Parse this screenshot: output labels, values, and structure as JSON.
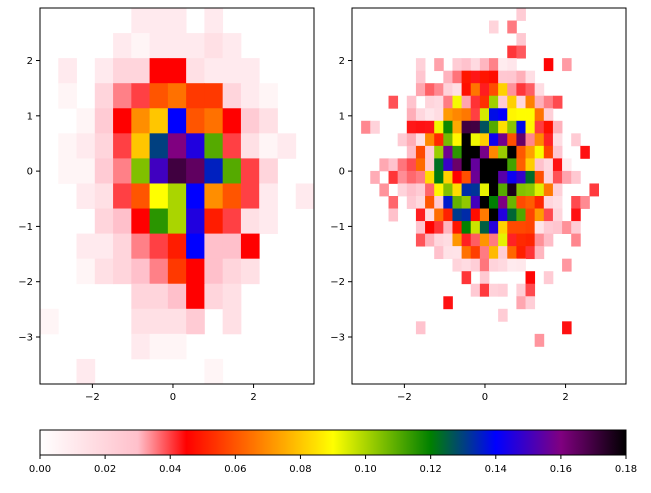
{
  "chart_data": [
    {
      "type": "heatmap",
      "title": "",
      "xlabel": "",
      "ylabel": "",
      "xlim": [
        -3.3,
        3.5
      ],
      "ylim": [
        -3.85,
        2.95
      ],
      "bins": 15,
      "x_ticks": [
        -2,
        0,
        2
      ],
      "y_ticks": [
        -3,
        -2,
        -1,
        0,
        1,
        2
      ],
      "x_tick_labels": [
        "−2",
        "0",
        "2"
      ],
      "y_tick_labels": [
        "−3",
        "−2",
        "−1",
        "0",
        "1",
        "2"
      ],
      "grid": false,
      "row_order": "top-to-bottom",
      "values": [
        [
          0,
          0,
          0,
          0,
          0,
          0.01,
          0.01,
          0.01,
          0,
          0.01,
          0,
          0,
          0,
          0,
          0
        ],
        [
          0,
          0,
          0,
          0,
          0.01,
          0.005,
          0.01,
          0.01,
          0.01,
          0.015,
          0.01,
          0,
          0,
          0,
          0
        ],
        [
          0,
          0.01,
          0,
          0.01,
          0.02,
          0.02,
          0.045,
          0.045,
          0.015,
          0.01,
          0.01,
          0.01,
          0,
          0,
          0
        ],
        [
          0,
          0.005,
          0,
          0.02,
          0.035,
          0.04,
          0.06,
          0.065,
          0.055,
          0.055,
          0.02,
          0.01,
          0.005,
          0,
          0
        ],
        [
          0,
          0,
          0.005,
          0.025,
          0.045,
          0.07,
          0.08,
          0.14,
          0.06,
          0.065,
          0.045,
          0.025,
          0.015,
          0,
          0
        ],
        [
          0,
          0.005,
          0.01,
          0.02,
          0.04,
          0.08,
          0.13,
          0.16,
          0.145,
          0.11,
          0.04,
          0.015,
          0.005,
          0.01,
          0
        ],
        [
          0,
          0.005,
          0.005,
          0.025,
          0.035,
          0.105,
          0.15,
          0.17,
          0.165,
          0.135,
          0.11,
          0.04,
          0.02,
          0,
          0
        ],
        [
          0,
          0,
          0.01,
          0.015,
          0.04,
          0.06,
          0.09,
          0.1,
          0.14,
          0.07,
          0.06,
          0.04,
          0.01,
          0,
          0.01
        ],
        [
          0,
          0,
          0,
          0.02,
          0.03,
          0.045,
          0.115,
          0.1,
          0.145,
          0.05,
          0.04,
          0.015,
          0.01,
          0,
          0
        ],
        [
          0,
          0,
          0.01,
          0.01,
          0.02,
          0.035,
          0.04,
          0.05,
          0.14,
          0.03,
          0.03,
          0.045,
          0,
          0,
          0
        ],
        [
          0,
          0,
          0.005,
          0.015,
          0.02,
          0.03,
          0.035,
          0.055,
          0.045,
          0.03,
          0.02,
          0.015,
          0,
          0,
          0
        ],
        [
          0,
          0,
          0,
          0,
          0,
          0.02,
          0.02,
          0.03,
          0.045,
          0.02,
          0.015,
          0,
          0,
          0,
          0
        ],
        [
          0.005,
          0,
          0,
          0,
          0,
          0.015,
          0.015,
          0.015,
          0.025,
          0,
          0.015,
          0,
          0,
          0,
          0
        ],
        [
          0,
          0,
          0,
          0,
          0,
          0.01,
          0.005,
          0.005,
          0,
          0,
          0,
          0,
          0,
          0,
          0
        ],
        [
          0,
          0,
          0.01,
          0,
          0,
          0,
          0,
          0,
          0,
          0.005,
          0,
          0,
          0,
          0,
          0
        ]
      ]
    },
    {
      "type": "heatmap",
      "title": "",
      "xlabel": "",
      "ylabel": "",
      "xlim": [
        -3.3,
        3.5
      ],
      "ylim": [
        -3.85,
        2.95
      ],
      "bins": 30,
      "x_ticks": [
        -2,
        0,
        2
      ],
      "y_ticks": [
        -3,
        -2,
        -1,
        0,
        1,
        2
      ],
      "x_tick_labels": [
        "−2",
        "0",
        "2"
      ],
      "y_tick_labels": [
        "−3",
        "−2",
        "−1",
        "0",
        "1",
        "2"
      ],
      "grid": false,
      "sampling": "generated-from-gaussian-profile",
      "center": [
        0.05,
        0.05
      ],
      "spread": [
        0.95,
        0.95
      ],
      "peak": 0.175,
      "seed": 7
    }
  ],
  "colorbar": {
    "colormap": "gist_heat_like",
    "range": [
      0,
      0.18
    ],
    "ticks": [
      0.0,
      0.02,
      0.04,
      0.06,
      0.08,
      0.1,
      0.12,
      0.14,
      0.16,
      0.18
    ],
    "tick_labels": [
      "0.00",
      "0.02",
      "0.04",
      "0.06",
      "0.08",
      "0.10",
      "0.12",
      "0.14",
      "0.16",
      "0.18"
    ],
    "stops": [
      {
        "value": 0.0,
        "color": "#ffffff"
      },
      {
        "value": 0.03,
        "color": "#ffc0cb"
      },
      {
        "value": 0.045,
        "color": "#ff0000"
      },
      {
        "value": 0.09,
        "color": "#ffff00"
      },
      {
        "value": 0.12,
        "color": "#008000"
      },
      {
        "value": 0.14,
        "color": "#0000ff"
      },
      {
        "value": 0.16,
        "color": "#800080"
      },
      {
        "value": 0.18,
        "color": "#000000"
      }
    ]
  }
}
